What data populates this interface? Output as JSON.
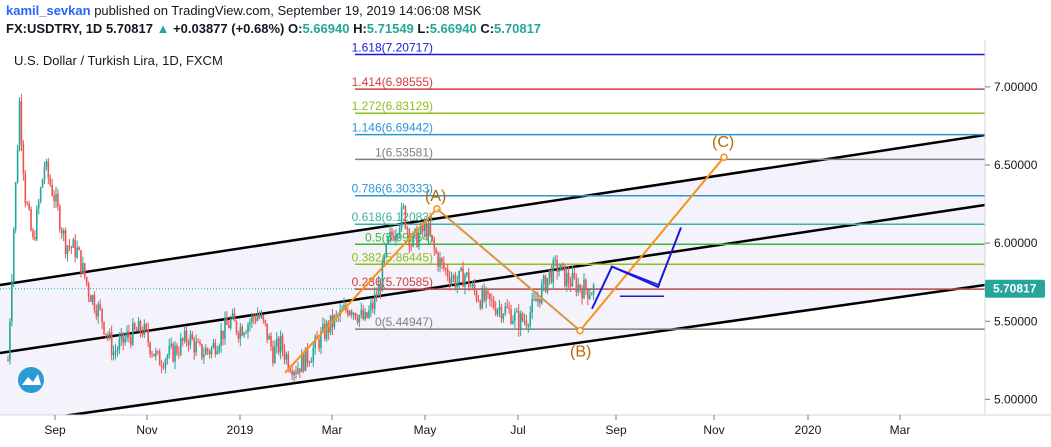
{
  "header": {
    "author": "kamil_sevkan",
    "published": " published on TradingView.com, September 19, 2019 14:06:08 MSK",
    "symbol": "FX:USDTRY, 1D",
    "last": "5.70817",
    "change": "+0.03877 (+0.68%)",
    "ohlc_o": "5.66940",
    "ohlc_h": "5.71549",
    "ohlc_l": "5.66940",
    "ohlc_c": "5.70817"
  },
  "chart_title": "U.S. Dollar / Turkish Lira, 1D, FXCM",
  "price_label": "5.70817",
  "colors": {
    "up": "#26a69a",
    "down": "#ef5350",
    "channel": "#000000",
    "channel_fill": "#ede9f7",
    "wave": "#f7931a",
    "projection": "#1a1ad6",
    "price_tag": "#26a69a"
  },
  "chart_data": {
    "type": "candlestick",
    "x_ticks": [
      "Sep",
      "Nov",
      "2019",
      "Mar",
      "May",
      "Jul",
      "Sep",
      "Nov",
      "2020",
      "Mar"
    ],
    "y_ticks": [
      "7.00000",
      "6.50000",
      "6.00000",
      "5.50000",
      "5.00000"
    ],
    "ylim": [
      4.9,
      7.3
    ],
    "series_close_path": [
      [
        0,
        5.25
      ],
      [
        3,
        6.1
      ],
      [
        6,
        6.9
      ],
      [
        9,
        6.3
      ],
      [
        13,
        6.0
      ],
      [
        16,
        6.25
      ],
      [
        19,
        6.5
      ],
      [
        24,
        6.3
      ],
      [
        30,
        6.0
      ],
      [
        36,
        5.95
      ],
      [
        42,
        5.7
      ],
      [
        48,
        5.55
      ],
      [
        55,
        5.3
      ],
      [
        62,
        5.4
      ],
      [
        70,
        5.45
      ],
      [
        78,
        5.25
      ],
      [
        86,
        5.3
      ],
      [
        94,
        5.4
      ],
      [
        100,
        5.3
      ],
      [
        106,
        5.32
      ],
      [
        110,
        5.4
      ],
      [
        116,
        5.5
      ],
      [
        120,
        5.45
      ],
      [
        126,
        5.5
      ],
      [
        130,
        5.55
      ],
      [
        134,
        5.45
      ],
      [
        138,
        5.3
      ],
      [
        142,
        5.35
      ],
      [
        146,
        5.25
      ],
      [
        150,
        5.2
      ],
      [
        154,
        5.25
      ],
      [
        158,
        5.3
      ],
      [
        162,
        5.38
      ],
      [
        166,
        5.45
      ],
      [
        170,
        5.5
      ],
      [
        174,
        5.55
      ],
      [
        178,
        5.6
      ],
      [
        182,
        5.55
      ],
      [
        186,
        5.5
      ],
      [
        190,
        5.6
      ],
      [
        194,
        5.75
      ],
      [
        198,
        6.0
      ],
      [
        202,
        6.1
      ],
      [
        206,
        6.2
      ],
      [
        210,
        6.0
      ],
      [
        214,
        6.05
      ],
      [
        218,
        6.1
      ],
      [
        222,
        5.95
      ],
      [
        226,
        5.85
      ],
      [
        230,
        5.8
      ],
      [
        234,
        5.75
      ],
      [
        238,
        5.8
      ],
      [
        242,
        5.7
      ],
      [
        246,
        5.65
      ],
      [
        250,
        5.62
      ],
      [
        254,
        5.6
      ],
      [
        258,
        5.58
      ],
      [
        262,
        5.55
      ],
      [
        266,
        5.5
      ],
      [
        270,
        5.52
      ],
      [
        274,
        5.6
      ],
      [
        278,
        5.7
      ],
      [
        282,
        5.8
      ],
      [
        286,
        5.85
      ],
      [
        290,
        5.78
      ],
      [
        294,
        5.75
      ],
      [
        298,
        5.72
      ],
      [
        302,
        5.7
      ],
      [
        306,
        5.71
      ]
    ],
    "fib_levels": [
      {
        "label": "1.618(7.20717)",
        "value": 7.20717,
        "color": "#1a1ad6"
      },
      {
        "label": "1.414(6.98555)",
        "value": 6.98555,
        "color": "#d63c3c"
      },
      {
        "label": "1.272(6.83129)",
        "value": 6.83129,
        "color": "#8fbf1f"
      },
      {
        "label": "1.146(6.69442)",
        "value": 6.69442,
        "color": "#2b96d6"
      },
      {
        "label": "1(6.53581)",
        "value": 6.53581,
        "color": "#808080"
      },
      {
        "label": "0.786(6.30333)",
        "value": 6.30333,
        "color": "#2b96d6"
      },
      {
        "label": "0.618(6.12083)",
        "value": 6.12083,
        "color": "#3bb3a0"
      },
      {
        "label": "0.5(5.99264)",
        "value": 5.99264,
        "color": "#3fb33f"
      },
      {
        "label": "0.382(5.86445)",
        "value": 5.86445,
        "color": "#8fbf1f"
      },
      {
        "label": "0.236(5.70585)",
        "value": 5.70585,
        "color": "#d63c3c"
      },
      {
        "label": "0(5.44947)",
        "value": 5.44947,
        "color": "#808080"
      }
    ],
    "wave_labels": [
      "(A)",
      "(B)",
      "(C)"
    ]
  }
}
